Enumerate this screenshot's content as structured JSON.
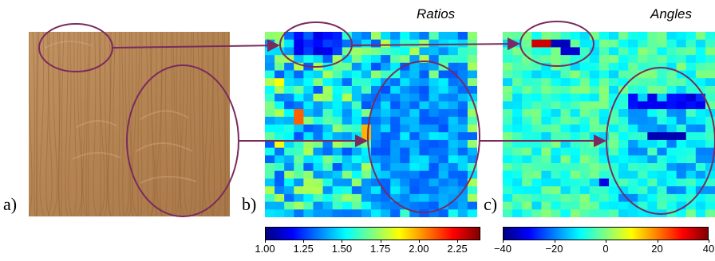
{
  "labels": {
    "a": "a)",
    "b": "b)",
    "c": "c)"
  },
  "titles": {
    "ratios": "Ratios",
    "angles": "Angles"
  },
  "colorbars": {
    "ratios": {
      "ticks": [
        "1.00",
        "1.25",
        "1.50",
        "1.75",
        "2.00",
        "2.25"
      ],
      "min": 1.0,
      "max": 2.4,
      "tick_values": [
        1.0,
        1.25,
        1.5,
        1.75,
        2.0,
        2.25
      ]
    },
    "angles": {
      "ticks": [
        "−40",
        "−20",
        "0",
        "20",
        "40"
      ],
      "min": -40,
      "max": 40,
      "tick_values": [
        -40,
        -20,
        0,
        20,
        40
      ]
    }
  },
  "colors": {
    "annotation": "#7a2a5e",
    "wood_base": "#b98a5a",
    "jet": [
      "#000080",
      "#0000ff",
      "#0080ff",
      "#00ffff",
      "#80ff80",
      "#ffff00",
      "#ff8000",
      "#ff0000",
      "#800000"
    ]
  }
}
